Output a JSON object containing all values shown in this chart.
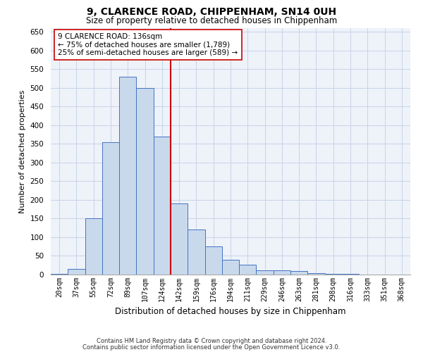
{
  "title": "9, CLARENCE ROAD, CHIPPENHAM, SN14 0UH",
  "subtitle": "Size of property relative to detached houses in Chippenham",
  "xlabel": "Distribution of detached houses by size in Chippenham",
  "ylabel": "Number of detached properties",
  "bin_labels": [
    "20sqm",
    "37sqm",
    "55sqm",
    "72sqm",
    "89sqm",
    "107sqm",
    "124sqm",
    "142sqm",
    "159sqm",
    "176sqm",
    "194sqm",
    "211sqm",
    "229sqm",
    "246sqm",
    "263sqm",
    "281sqm",
    "298sqm",
    "316sqm",
    "333sqm",
    "351sqm",
    "368sqm"
  ],
  "bar_heights": [
    2,
    15,
    150,
    355,
    530,
    500,
    370,
    190,
    120,
    75,
    40,
    27,
    12,
    12,
    10,
    3,
    1,
    1,
    0,
    0,
    0
  ],
  "bar_color": "#c9d9ec",
  "bar_edge_color": "#4472c4",
  "grid_color": "#c8d4e8",
  "background_color": "#eef2f9",
  "vline_color": "#cc0000",
  "vline_position": 6.5,
  "annotation_text": "9 CLARENCE ROAD: 136sqm\n← 75% of detached houses are smaller (1,789)\n25% of semi-detached houses are larger (589) →",
  "annotation_box_color": "#ffffff",
  "annotation_box_edge": "#cc0000",
  "ylim": [
    0,
    660
  ],
  "yticks": [
    0,
    50,
    100,
    150,
    200,
    250,
    300,
    350,
    400,
    450,
    500,
    550,
    600,
    650
  ],
  "footnote1": "Contains HM Land Registry data © Crown copyright and database right 2024.",
  "footnote2": "Contains public sector information licensed under the Open Government Licence v3.0."
}
